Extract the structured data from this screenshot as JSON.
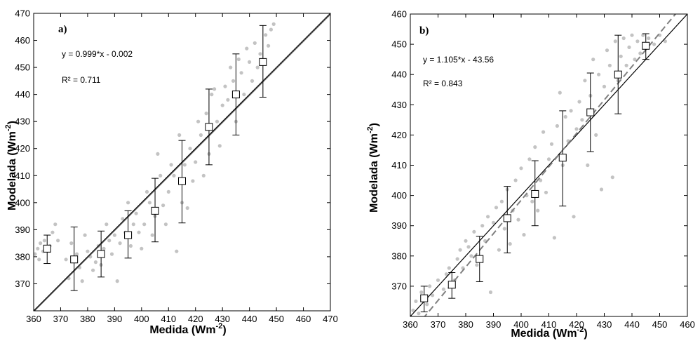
{
  "chart_data": [
    {
      "type": "scatter",
      "panel_label": "a)",
      "xlabel_main": "Medida (Wm",
      "xlabel_sup": "-2",
      "xlabel_end": ")",
      "ylabel_main": "Modelada (Wm",
      "ylabel_sup": "-2",
      "ylabel_end": ")",
      "equation": "y = 0.999*x - 0.002",
      "r2": "R² = 0.711",
      "xlim": [
        360,
        470
      ],
      "ylim": [
        360,
        470
      ],
      "xticks": [
        360,
        370,
        380,
        390,
        400,
        410,
        420,
        430,
        440,
        450,
        460,
        470
      ],
      "yticks": [
        370,
        380,
        390,
        400,
        410,
        420,
        430,
        440,
        450,
        460,
        470
      ],
      "identity_line": [
        [
          360,
          360
        ],
        [
          470,
          470
        ]
      ],
      "regression_line": {
        "slope": 0.999,
        "intercept": -0.002,
        "style": "solid"
      },
      "binned_means": [
        {
          "x": 365,
          "y": 383,
          "low": 377.5,
          "high": 388
        },
        {
          "x": 375,
          "y": 379,
          "low": 367.5,
          "high": 391
        },
        {
          "x": 385,
          "y": 381,
          "low": 372.5,
          "high": 389.5
        },
        {
          "x": 395,
          "y": 388,
          "low": 379.5,
          "high": 397
        },
        {
          "x": 405,
          "y": 397,
          "low": 385.5,
          "high": 409
        },
        {
          "x": 415,
          "y": 408,
          "low": 392.5,
          "high": 423
        },
        {
          "x": 425,
          "y": 428,
          "low": 414,
          "high": 442
        },
        {
          "x": 435,
          "y": 440,
          "low": 425,
          "high": 455
        },
        {
          "x": 445,
          "y": 452,
          "low": 439,
          "high": 465.5
        }
      ],
      "scatter_points": [
        [
          360.5,
          381
        ],
        [
          361.5,
          383
        ],
        [
          362,
          379
        ],
        [
          362.5,
          385
        ],
        [
          363.5,
          382
        ],
        [
          364,
          386
        ],
        [
          366,
          384
        ],
        [
          367,
          389
        ],
        [
          368,
          392
        ],
        [
          369,
          386
        ],
        [
          372,
          379
        ],
        [
          373,
          372
        ],
        [
          374,
          385
        ],
        [
          376,
          381
        ],
        [
          377,
          376
        ],
        [
          378,
          371
        ],
        [
          379,
          388
        ],
        [
          380,
          382
        ],
        [
          381,
          380
        ],
        [
          382,
          375
        ],
        [
          383,
          378
        ],
        [
          384,
          384
        ],
        [
          385,
          377
        ],
        [
          386,
          383
        ],
        [
          387,
          392
        ],
        [
          388,
          386
        ],
        [
          389,
          381
        ],
        [
          390,
          388
        ],
        [
          391,
          371
        ],
        [
          392,
          385
        ],
        [
          393,
          394
        ],
        [
          394,
          389
        ],
        [
          395,
          400
        ],
        [
          396,
          384
        ],
        [
          397,
          392
        ],
        [
          398,
          396
        ],
        [
          399,
          389
        ],
        [
          400,
          383
        ],
        [
          401,
          392
        ],
        [
          402,
          404
        ],
        [
          403,
          400
        ],
        [
          404,
          388
        ],
        [
          405,
          395
        ],
        [
          406,
          418
        ],
        [
          407,
          410
        ],
        [
          408,
          399
        ],
        [
          409,
          392
        ],
        [
          410,
          404
        ],
        [
          411,
          414
        ],
        [
          412,
          410
        ],
        [
          413,
          382
        ],
        [
          414,
          425
        ],
        [
          415,
          400
        ],
        [
          416,
          414
        ],
        [
          417,
          398
        ],
        [
          418,
          420
        ],
        [
          419,
          408
        ],
        [
          420,
          415
        ],
        [
          421,
          430
        ],
        [
          422,
          425
        ],
        [
          423,
          410
        ],
        [
          424,
          433
        ],
        [
          425,
          418
        ],
        [
          426,
          440
        ],
        [
          427,
          442
        ],
        [
          428,
          430
        ],
        [
          429,
          421
        ],
        [
          430,
          436
        ],
        [
          431,
          443
        ],
        [
          432,
          438
        ],
        [
          433,
          450
        ],
        [
          434,
          445
        ],
        [
          435,
          430
        ],
        [
          436,
          453
        ],
        [
          437,
          448
        ],
        [
          438,
          440
        ],
        [
          439,
          457
        ],
        [
          440,
          452
        ],
        [
          441,
          445
        ],
        [
          442,
          459
        ],
        [
          443,
          450
        ],
        [
          444,
          455
        ],
        [
          446,
          462
        ],
        [
          447,
          458
        ],
        [
          448,
          464
        ],
        [
          449,
          466
        ]
      ]
    },
    {
      "type": "scatter",
      "panel_label": "b)",
      "xlabel_main": "Medida (Wm",
      "xlabel_sup": "-2",
      "xlabel_end": ")",
      "ylabel_main": "Modelada (Wm",
      "ylabel_sup": "-2",
      "ylabel_end": ")",
      "equation": "y = 1.105*x - 43.56",
      "r2": "R² = 0.843",
      "xlim": [
        360,
        460
      ],
      "ylim": [
        360,
        460
      ],
      "xticks": [
        360,
        370,
        380,
        390,
        400,
        410,
        420,
        430,
        440,
        450,
        460
      ],
      "yticks": [
        370,
        380,
        390,
        400,
        410,
        420,
        430,
        440,
        450,
        460
      ],
      "identity_line": [
        [
          360,
          360
        ],
        [
          460,
          460
        ]
      ],
      "regression_line": {
        "slope": 1.105,
        "intercept": -43.56,
        "style": "dashed"
      },
      "binned_means": [
        {
          "x": 365,
          "y": 366,
          "low": 361.5,
          "high": 370
        },
        {
          "x": 375,
          "y": 370.5,
          "low": 366,
          "high": 374.5
        },
        {
          "x": 385,
          "y": 379,
          "low": 371.5,
          "high": 386.5
        },
        {
          "x": 395,
          "y": 392.5,
          "low": 381,
          "high": 403
        },
        {
          "x": 405,
          "y": 400.5,
          "low": 390,
          "high": 411.5
        },
        {
          "x": 415,
          "y": 412.5,
          "low": 396.5,
          "high": 428
        },
        {
          "x": 425,
          "y": 427.5,
          "low": 414.5,
          "high": 440.5
        },
        {
          "x": 435,
          "y": 440,
          "low": 427,
          "high": 453
        },
        {
          "x": 445,
          "y": 449.5,
          "low": 445,
          "high": 453.5
        }
      ],
      "scatter_points": [
        [
          361,
          362
        ],
        [
          362,
          365
        ],
        [
          363,
          361
        ],
        [
          364,
          368
        ],
        [
          366,
          364
        ],
        [
          367,
          370
        ],
        [
          368,
          367
        ],
        [
          370,
          372
        ],
        [
          372,
          369
        ],
        [
          373,
          374
        ],
        [
          374,
          376
        ],
        [
          376,
          372
        ],
        [
          377,
          379
        ],
        [
          378,
          382
        ],
        [
          379,
          376
        ],
        [
          380,
          385
        ],
        [
          381,
          383
        ],
        [
          382,
          380
        ],
        [
          383,
          388
        ],
        [
          384,
          377
        ],
        [
          386,
          390
        ],
        [
          387,
          385
        ],
        [
          388,
          393
        ],
        [
          389,
          368
        ],
        [
          390,
          391
        ],
        [
          391,
          396
        ],
        [
          392,
          382
        ],
        [
          393,
          398
        ],
        [
          394,
          389
        ],
        [
          395,
          402
        ],
        [
          396,
          384
        ],
        [
          397,
          395
        ],
        [
          398,
          405
        ],
        [
          399,
          392
        ],
        [
          400,
          409
        ],
        [
          401,
          387
        ],
        [
          402,
          400
        ],
        [
          403,
          412
        ],
        [
          404,
          398
        ],
        [
          405,
          416
        ],
        [
          406,
          395
        ],
        [
          407,
          405
        ],
        [
          408,
          421
        ],
        [
          409,
          401
        ],
        [
          410,
          412
        ],
        [
          411,
          417
        ],
        [
          412,
          386
        ],
        [
          413,
          423
        ],
        [
          414,
          434
        ],
        [
          415,
          410
        ],
        [
          416,
          426
        ],
        [
          417,
          418
        ],
        [
          418,
          428
        ],
        [
          419,
          393
        ],
        [
          420,
          422
        ],
        [
          421,
          431
        ],
        [
          422,
          425
        ],
        [
          423,
          438
        ],
        [
          424,
          410
        ],
        [
          425,
          433
        ],
        [
          426,
          445
        ],
        [
          427,
          420
        ],
        [
          428,
          440
        ],
        [
          429,
          402
        ],
        [
          430,
          436
        ],
        [
          431,
          448
        ],
        [
          432,
          443
        ],
        [
          433,
          406
        ],
        [
          434,
          451
        ],
        [
          435,
          438
        ],
        [
          436,
          446
        ],
        [
          437,
          452
        ],
        [
          438,
          443
        ],
        [
          439,
          449
        ],
        [
          440,
          453
        ],
        [
          441,
          445
        ],
        [
          442,
          451
        ],
        [
          443,
          447
        ],
        [
          444,
          453
        ],
        [
          446,
          452
        ],
        [
          448,
          450
        ],
        [
          450,
          453
        ],
        [
          452,
          451
        ]
      ]
    }
  ],
  "colors": {
    "points": "#c3c3c3",
    "lines": "#000000",
    "regression_dashed": "#808080",
    "marker_fill": "#ffffff"
  }
}
